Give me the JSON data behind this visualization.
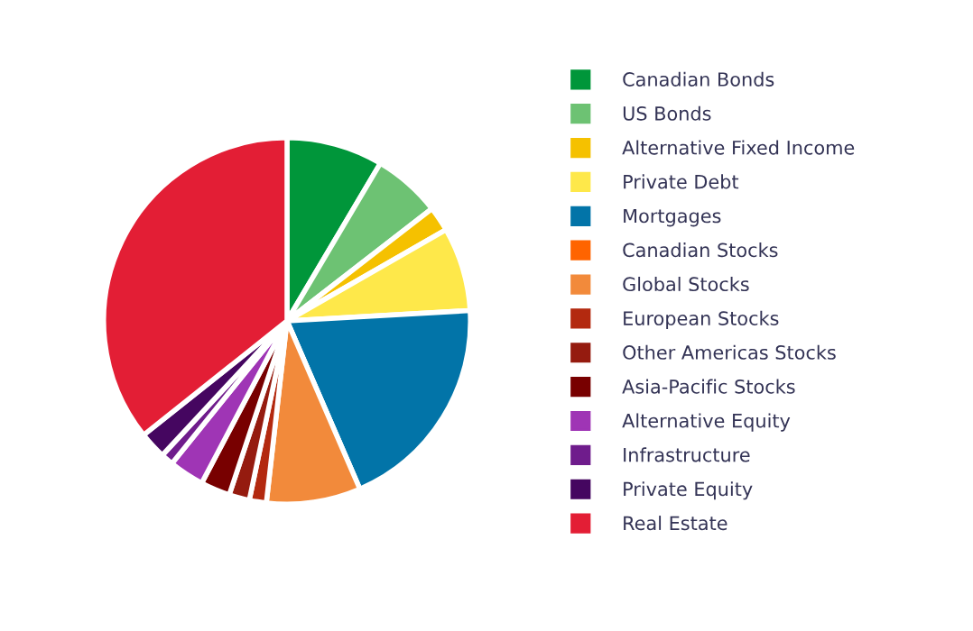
{
  "chart_data": {
    "type": "pie",
    "categories": [
      "Canadian Bonds",
      "US Bonds",
      "Alternative Fixed Income",
      "Private Debt",
      "Mortgages",
      "Canadian Stocks",
      "Global Stocks",
      "European Stocks",
      "Other Americas Stocks",
      "Asia-Pacific Stocks",
      "Alternative Equity",
      "Infrastructure",
      "Private Equity",
      "Real Estate"
    ],
    "values": [
      8.5,
      6.0,
      2.2,
      7.4,
      19.4,
      0,
      8.3,
      1.5,
      1.8,
      2.6,
      3.1,
      1.1,
      2.4,
      35.7
    ],
    "colors": [
      "#00963a",
      "#6dc273",
      "#f5c100",
      "#fee84a",
      "#0274a8",
      "#ff6400",
      "#f28a3b",
      "#b3290f",
      "#951b0f",
      "#780000",
      "#9f35b5",
      "#6f1c8c",
      "#450660",
      "#e31e35"
    ],
    "legend": "right"
  }
}
